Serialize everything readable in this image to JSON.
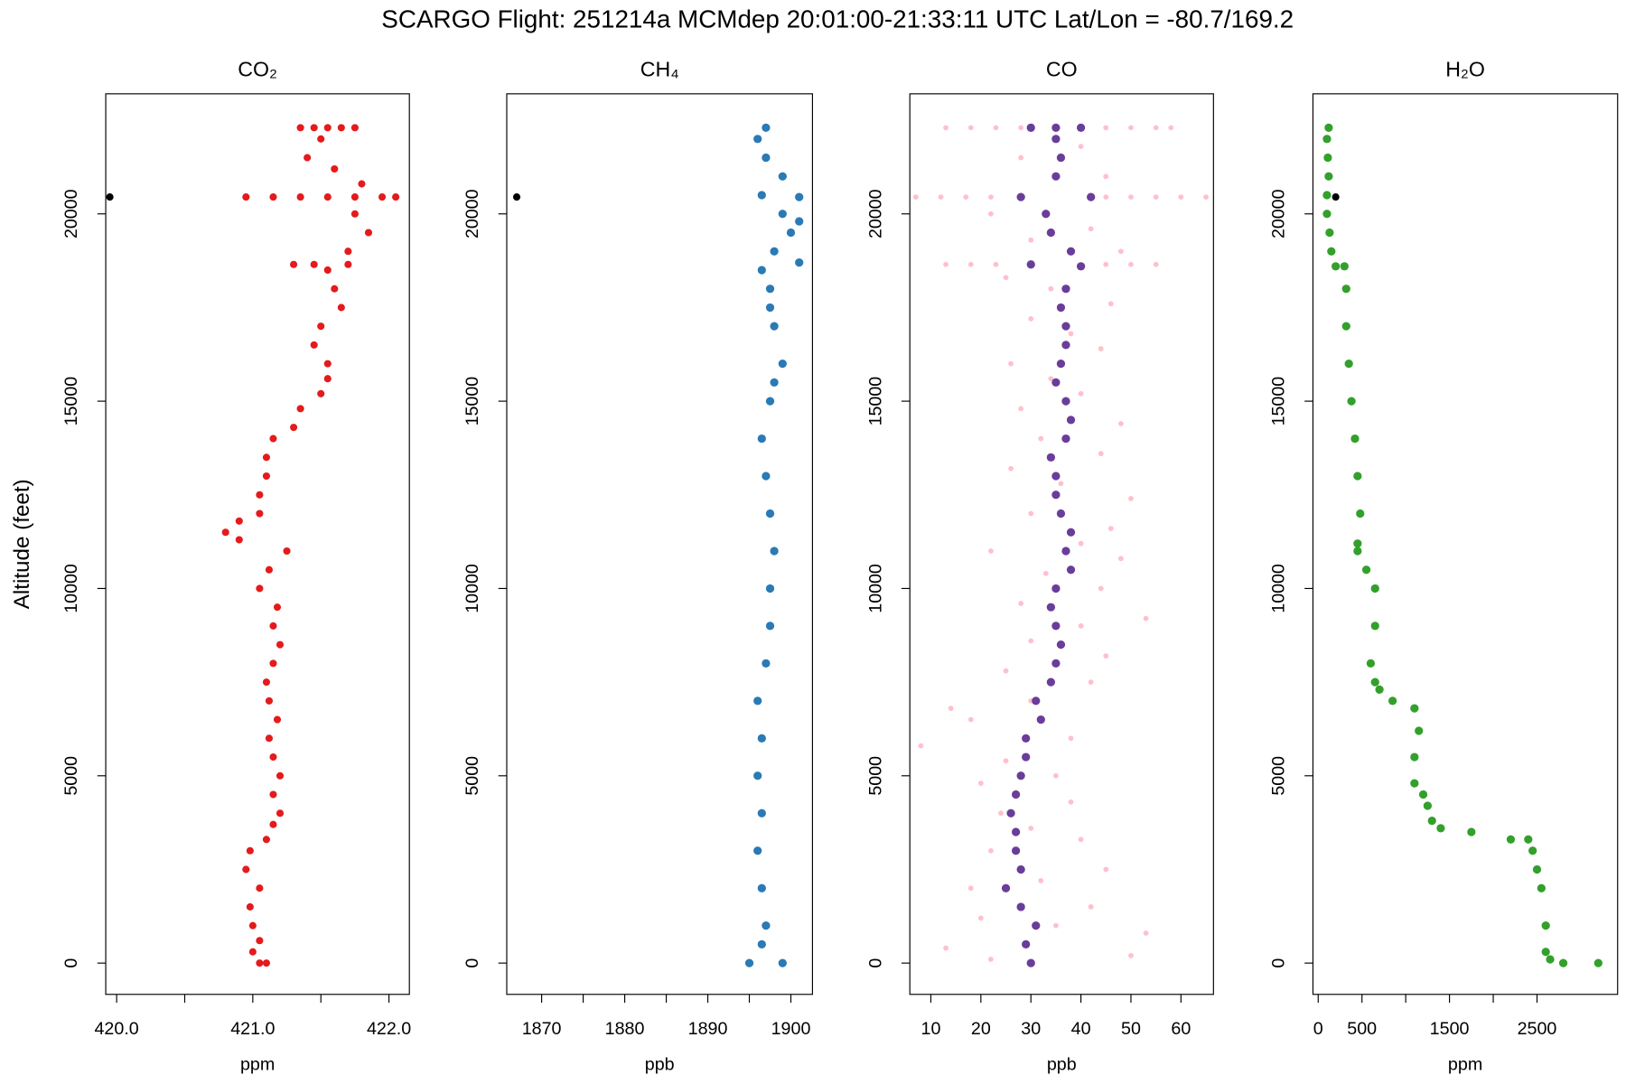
{
  "title": "SCARGO Flight: 251214a  MCMdep  20:01:00-21:33:11 UTC  Lat/Lon = -80.7/169.2",
  "ylabel": "Altitude (feet)",
  "chart_data": [
    {
      "type": "scatter",
      "title": "CO₂",
      "xlabel": "ppm",
      "xlim": [
        419.92,
        422.15
      ],
      "ylim": [
        -835,
        23205
      ],
      "xticks": [
        {
          "value": 420,
          "label": "420.0"
        },
        {
          "value": 421,
          "label": "421.0"
        },
        {
          "value": 422,
          "label": "422.0"
        }
      ],
      "xminor_ticks": [
        420.5,
        421.5
      ],
      "yticks": [
        0,
        5000,
        10000,
        15000,
        20000
      ],
      "series": [
        {
          "color": "#e41a1c",
          "size": 3.5,
          "x": [
            421.05,
            421.1,
            421.0,
            421.05,
            421.0,
            420.98,
            421.05,
            420.95,
            420.98,
            421.1,
            421.15,
            421.2,
            421.15,
            421.2,
            421.15,
            421.12,
            421.18,
            421.12,
            421.1,
            421.15,
            421.2,
            421.15,
            421.18,
            421.05,
            421.12,
            421.25,
            420.9,
            420.8,
            420.9,
            421.05,
            421.05,
            421.1,
            421.1,
            421.15,
            421.3,
            421.35,
            421.5,
            421.55,
            421.55,
            421.45,
            421.5,
            421.65,
            421.6,
            421.55,
            421.3,
            421.45,
            421.7,
            421.7,
            421.85,
            421.75,
            420.95,
            421.15,
            421.35,
            421.55,
            421.75,
            421.95,
            422.05,
            421.8,
            421.6,
            421.4,
            421.5,
            421.35,
            421.45,
            421.55,
            421.65,
            421.75
          ],
          "values": [
            0,
            0,
            300,
            600,
            1000,
            1500,
            2000,
            2500,
            3000,
            3300,
            3700,
            4000,
            4500,
            5000,
            5500,
            6000,
            6500,
            7000,
            7500,
            8000,
            8500,
            9000,
            9500,
            10000,
            10500,
            11000,
            11300,
            11500,
            11800,
            12000,
            12500,
            13000,
            13500,
            14000,
            14300,
            14800,
            15200,
            15600,
            16000,
            16500,
            17000,
            17500,
            18000,
            18500,
            18650,
            18650,
            18650,
            19000,
            19500,
            20000,
            20450,
            20450,
            20450,
            20450,
            20450,
            20450,
            20450,
            20800,
            21200,
            21500,
            22000,
            22300,
            22300,
            22300,
            22300,
            22300
          ]
        },
        {
          "color": "#000000",
          "size": 3.5,
          "x": [
            419.95
          ],
          "values": [
            20450
          ]
        }
      ]
    },
    {
      "type": "scatter",
      "title": "CH₄",
      "xlabel": "ppb",
      "xlim": [
        1865.8,
        1902.6
      ],
      "ylim": [
        -835,
        23205
      ],
      "xticks": [
        1870,
        1880,
        1890,
        1900
      ],
      "xminor_ticks": [
        1875,
        1885,
        1895
      ],
      "yticks": [
        0,
        5000,
        10000,
        15000,
        20000
      ],
      "series": [
        {
          "color": "#2a7ab5",
          "size": 4,
          "x": [
            1899,
            1895,
            1896.5,
            1897,
            1896.5,
            1896,
            1896.5,
            1896,
            1896.5,
            1896,
            1897,
            1897.5,
            1897.5,
            1898,
            1897.5,
            1897,
            1896.5,
            1897.5,
            1898,
            1899,
            1898,
            1897.5,
            1897.5,
            1896.5,
            1901,
            1898,
            1900,
            1901,
            1899,
            1901,
            1896.5,
            1899,
            1897,
            1896,
            1897
          ],
          "values": [
            0,
            0,
            500,
            1000,
            2000,
            3000,
            4000,
            5000,
            6000,
            7000,
            8000,
            9000,
            10000,
            11000,
            12000,
            13000,
            14000,
            15000,
            15500,
            16000,
            17000,
            17500,
            18000,
            18500,
            18700,
            19000,
            19500,
            19800,
            20000,
            20450,
            20500,
            21000,
            21500,
            22000,
            22300
          ]
        },
        {
          "color": "#000000",
          "size": 3.5,
          "x": [
            1867
          ],
          "values": [
            20450
          ]
        }
      ]
    },
    {
      "type": "scatter",
      "title": "CO",
      "xlabel": "ppb",
      "xlim": [
        5.8,
        66.5
      ],
      "ylim": [
        -835,
        23205
      ],
      "xticks": [
        10,
        20,
        30,
        40,
        50,
        60
      ],
      "yticks": [
        0,
        5000,
        10000,
        15000,
        20000
      ],
      "series": [
        {
          "color": "#ffc0cb",
          "size": 2.5,
          "x": [
            22,
            50,
            13,
            53,
            35,
            20,
            42,
            18,
            32,
            45,
            22,
            40,
            30,
            24,
            38,
            20,
            35,
            25,
            8,
            38,
            18,
            14,
            30,
            42,
            25,
            45,
            30,
            40,
            53,
            28,
            44,
            33,
            48,
            22,
            40,
            46,
            30,
            50,
            36,
            26,
            44,
            32,
            48,
            28,
            40,
            34,
            26,
            44,
            38,
            30,
            46,
            34,
            25,
            48,
            30,
            42,
            22,
            45,
            28,
            40,
            13,
            18,
            23,
            28,
            45,
            50,
            55,
            58,
            7,
            12,
            17,
            22,
            45,
            50,
            55,
            60,
            65,
            13,
            18,
            23,
            45,
            50,
            55
          ],
          "values": [
            100,
            200,
            400,
            800,
            1000,
            1200,
            1500,
            2000,
            2200,
            2500,
            3000,
            3300,
            3600,
            4000,
            4300,
            4800,
            5000,
            5400,
            5800,
            6000,
            6500,
            6800,
            7000,
            7500,
            7800,
            8200,
            8600,
            9000,
            9200,
            9600,
            10000,
            10400,
            10800,
            11000,
            11200,
            11600,
            12000,
            12400,
            12800,
            13200,
            13600,
            14000,
            14400,
            14800,
            15200,
            15600,
            16000,
            16400,
            16800,
            17200,
            17600,
            18000,
            18300,
            19000,
            19300,
            19600,
            20000,
            21000,
            21500,
            21800,
            22300,
            22300,
            22300,
            22300,
            22300,
            22300,
            22300,
            22300,
            20450,
            20450,
            20450,
            20450,
            20450,
            20450,
            20450,
            20450,
            20450,
            18650,
            18650,
            18650,
            18650,
            18650,
            18650
          ]
        },
        {
          "color": "#6a3d9a",
          "size": 4,
          "x": [
            30,
            29,
            31,
            28,
            25,
            28,
            27,
            27,
            26,
            27,
            28,
            29,
            29,
            32,
            31,
            34,
            35,
            36,
            35,
            34,
            35,
            38,
            37,
            38,
            36,
            35,
            35,
            34,
            37,
            38,
            37,
            35,
            36,
            37,
            37,
            36,
            37,
            40,
            30,
            38,
            34,
            33,
            28,
            42,
            35,
            36,
            35,
            30,
            35,
            40
          ],
          "values": [
            0,
            500,
            1000,
            1500,
            2000,
            2500,
            3000,
            3500,
            4000,
            4500,
            5000,
            5500,
            6000,
            6500,
            7000,
            7500,
            8000,
            8500,
            9000,
            9500,
            10000,
            10500,
            11000,
            11500,
            12000,
            12500,
            13000,
            13500,
            14000,
            14500,
            15000,
            15500,
            16000,
            16500,
            17000,
            17500,
            18000,
            18600,
            18650,
            19000,
            19500,
            20000,
            20450,
            20450,
            21000,
            21500,
            22000,
            22300,
            22300,
            22300
          ]
        }
      ]
    },
    {
      "type": "scatter",
      "title": "H₂O",
      "xlabel": "ppm",
      "xlim": [
        -60,
        3421
      ],
      "ylim": [
        -835,
        23205
      ],
      "xticks": [
        0,
        500,
        1500,
        2500
      ],
      "xminor_ticks": [
        1000,
        2000
      ],
      "yticks": [
        0,
        5000,
        10000,
        15000,
        20000
      ],
      "series": [
        {
          "color": "#33a02c",
          "size": 4,
          "x": [
            3200,
            2800,
            2650,
            2600,
            2600,
            2550,
            2500,
            2450,
            2400,
            2200,
            1750,
            1400,
            1300,
            1250,
            1200,
            1100,
            1100,
            1150,
            1100,
            850,
            700,
            650,
            600,
            650,
            650,
            550,
            450,
            450,
            480,
            450,
            420,
            380,
            350,
            320,
            320,
            300,
            200,
            150,
            130,
            100,
            100,
            120,
            110,
            100,
            120
          ],
          "values": [
            0,
            0,
            100,
            300,
            1000,
            2000,
            2500,
            3000,
            3300,
            3300,
            3500,
            3600,
            3800,
            4200,
            4500,
            4800,
            5500,
            6200,
            6800,
            7000,
            7300,
            7500,
            8000,
            9000,
            10000,
            10500,
            11000,
            11200,
            12000,
            13000,
            14000,
            15000,
            16000,
            17000,
            18000,
            18600,
            18600,
            19000,
            19500,
            20000,
            20500,
            21000,
            21500,
            22000,
            22300
          ]
        },
        {
          "color": "#000000",
          "size": 3.5,
          "x": [
            200
          ],
          "values": [
            20450
          ]
        }
      ]
    }
  ]
}
